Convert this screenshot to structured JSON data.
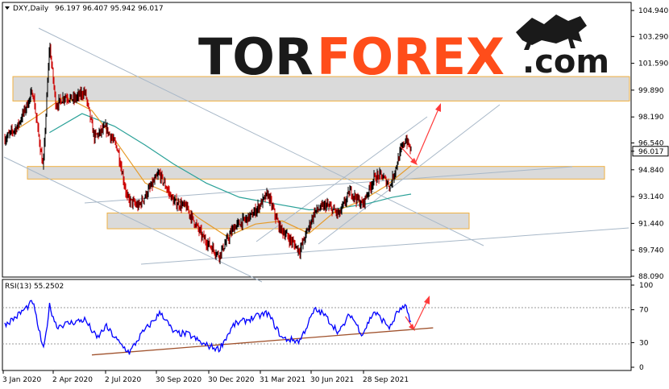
{
  "header": {
    "symbol": "DXY,Daily",
    "ohlc": "96.197 96.407 95.942 96.017",
    "rsi_label": "RSI(13) 55.2502"
  },
  "logo": {
    "part1": "TOR",
    "part2": "FOREX",
    "part3": ".com"
  },
  "colors": {
    "bull": "#000000",
    "bear": "#cc0000",
    "ma_fast": "#e69a28",
    "ma_slow": "#2aa198",
    "rsi_line": "#0000ff",
    "zone_fill": "#d3d3d3",
    "zone_border": "#f0b040",
    "channel": "#a8b8c8",
    "rsi_trend": "#a0522d",
    "arrow": "#ff3b3b",
    "logo_accent": "#ff4d1a"
  },
  "chart_data": [
    {
      "type": "candlestick",
      "title": "DXY,Daily",
      "y_ticks": [
        "104.940",
        "103.290",
        "101.590",
        "99.890",
        "98.190",
        "96.540",
        "96.017",
        "94.840",
        "93.140",
        "91.440",
        "89.740",
        "88.090"
      ],
      "x_ticks": [
        "3 Jan 2020",
        "2 Apr 2020",
        "2 Jul 2020",
        "30 Sep 2020",
        "30 Dec 2020",
        "31 Mar 2021",
        "30 Jun 2021",
        "28 Sep 2021"
      ],
      "ylim": [
        88.09,
        104.94
      ],
      "last_price": 96.017,
      "price_path": [
        {
          "date": "2020-01-03",
          "value": 96.8
        },
        {
          "date": "2020-01-25",
          "value": 97.6
        },
        {
          "date": "2020-02-20",
          "value": 99.8
        },
        {
          "date": "2020-03-05",
          "value": 96.0
        },
        {
          "date": "2020-03-09",
          "value": 94.9
        },
        {
          "date": "2020-03-20",
          "value": 102.8
        },
        {
          "date": "2020-03-31",
          "value": 98.9
        },
        {
          "date": "2020-04-15",
          "value": 99.5
        },
        {
          "date": "2020-05-01",
          "value": 99.3
        },
        {
          "date": "2020-05-20",
          "value": 99.8
        },
        {
          "date": "2020-06-05",
          "value": 96.9
        },
        {
          "date": "2020-06-25",
          "value": 97.5
        },
        {
          "date": "2020-07-15",
          "value": 96.2
        },
        {
          "date": "2020-08-01",
          "value": 93.0
        },
        {
          "date": "2020-08-20",
          "value": 92.5
        },
        {
          "date": "2020-09-25",
          "value": 94.6
        },
        {
          "date": "2020-10-20",
          "value": 92.8
        },
        {
          "date": "2020-11-10",
          "value": 92.5
        },
        {
          "date": "2020-12-10",
          "value": 90.5
        },
        {
          "date": "2021-01-06",
          "value": 89.4
        },
        {
          "date": "2021-02-01",
          "value": 91.2
        },
        {
          "date": "2021-03-05",
          "value": 92.0
        },
        {
          "date": "2021-03-31",
          "value": 93.3
        },
        {
          "date": "2021-04-20",
          "value": 91.2
        },
        {
          "date": "2021-05-25",
          "value": 89.7
        },
        {
          "date": "2021-06-20",
          "value": 92.2
        },
        {
          "date": "2021-07-10",
          "value": 92.6
        },
        {
          "date": "2021-08-01",
          "value": 92.0
        },
        {
          "date": "2021-08-20",
          "value": 93.5
        },
        {
          "date": "2021-09-10",
          "value": 92.6
        },
        {
          "date": "2021-09-30",
          "value": 94.3
        },
        {
          "date": "2021-10-12",
          "value": 94.5
        },
        {
          "date": "2021-10-28",
          "value": 93.8
        },
        {
          "date": "2021-11-15",
          "value": 96.0
        },
        {
          "date": "2021-11-24",
          "value": 96.8
        },
        {
          "date": "2021-12-03",
          "value": 96.017
        }
      ],
      "ma_fast": [
        {
          "date": "2020-01-15",
          "value": 97.2
        },
        {
          "date": "2020-03-01",
          "value": 98.3
        },
        {
          "date": "2020-04-15",
          "value": 99.5
        },
        {
          "date": "2020-06-01",
          "value": 98.6
        },
        {
          "date": "2020-07-15",
          "value": 96.5
        },
        {
          "date": "2020-09-01",
          "value": 94.0
        },
        {
          "date": "2020-10-15",
          "value": 93.3
        },
        {
          "date": "2020-12-01",
          "value": 91.8
        },
        {
          "date": "2021-01-20",
          "value": 90.6
        },
        {
          "date": "2021-03-10",
          "value": 91.4
        },
        {
          "date": "2021-04-25",
          "value": 91.6
        },
        {
          "date": "2021-06-10",
          "value": 90.8
        },
        {
          "date": "2021-07-25",
          "value": 92.2
        },
        {
          "date": "2021-09-10",
          "value": 92.9
        },
        {
          "date": "2021-10-20",
          "value": 93.8
        },
        {
          "date": "2021-12-03",
          "value": 95.1
        }
      ],
      "ma_slow": [
        {
          "date": "2020-03-20",
          "value": 97.2
        },
        {
          "date": "2020-05-15",
          "value": 98.4
        },
        {
          "date": "2020-07-10",
          "value": 97.6
        },
        {
          "date": "2020-09-01",
          "value": 96.4
        },
        {
          "date": "2020-10-20",
          "value": 95.2
        },
        {
          "date": "2020-12-15",
          "value": 94.0
        },
        {
          "date": "2021-02-10",
          "value": 93.1
        },
        {
          "date": "2021-04-10",
          "value": 92.7
        },
        {
          "date": "2021-06-10",
          "value": 92.3
        },
        {
          "date": "2021-08-01",
          "value": 92.4
        },
        {
          "date": "2021-09-20",
          "value": 92.7
        },
        {
          "date": "2021-11-01",
          "value": 93.1
        },
        {
          "date": "2021-12-03",
          "value": 93.3
        }
      ],
      "zones": [
        {
          "top": 100.75,
          "bottom": 99.2
        },
        {
          "top": 95.05,
          "bottom": 94.25
        },
        {
          "top": 92.1,
          "bottom": 91.1
        }
      ]
    },
    {
      "type": "line",
      "title": "RSI(13) 55.2502",
      "y_ticks": [
        "100",
        "70",
        "30",
        "0"
      ],
      "ylim": [
        0,
        100
      ],
      "levels": [
        70,
        30
      ],
      "value": 55.2502,
      "rsi_path": [
        {
          "date": "2020-01-03",
          "value": 52
        },
        {
          "date": "2020-01-20",
          "value": 60
        },
        {
          "date": "2020-02-10",
          "value": 73
        },
        {
          "date": "2020-02-20",
          "value": 80
        },
        {
          "date": "2020-03-05",
          "value": 35
        },
        {
          "date": "2020-03-10",
          "value": 20
        },
        {
          "date": "2020-03-20",
          "value": 75
        },
        {
          "date": "2020-04-01",
          "value": 50
        },
        {
          "date": "2020-05-01",
          "value": 55
        },
        {
          "date": "2020-05-20",
          "value": 58
        },
        {
          "date": "2020-06-10",
          "value": 35
        },
        {
          "date": "2020-06-25",
          "value": 50
        },
        {
          "date": "2020-07-20",
          "value": 28
        },
        {
          "date": "2020-08-05",
          "value": 18
        },
        {
          "date": "2020-08-25",
          "value": 40
        },
        {
          "date": "2020-09-28",
          "value": 67
        },
        {
          "date": "2020-10-20",
          "value": 42
        },
        {
          "date": "2020-11-15",
          "value": 40
        },
        {
          "date": "2020-12-10",
          "value": 28
        },
        {
          "date": "2021-01-06",
          "value": 22
        },
        {
          "date": "2021-02-01",
          "value": 52
        },
        {
          "date": "2021-03-05",
          "value": 60
        },
        {
          "date": "2021-03-31",
          "value": 66
        },
        {
          "date": "2021-04-25",
          "value": 35
        },
        {
          "date": "2021-05-25",
          "value": 32
        },
        {
          "date": "2021-06-20",
          "value": 70
        },
        {
          "date": "2021-07-05",
          "value": 65
        },
        {
          "date": "2021-08-01",
          "value": 42
        },
        {
          "date": "2021-08-20",
          "value": 65
        },
        {
          "date": "2021-09-10",
          "value": 40
        },
        {
          "date": "2021-09-30",
          "value": 68
        },
        {
          "date": "2021-10-28",
          "value": 48
        },
        {
          "date": "2021-11-10",
          "value": 68
        },
        {
          "date": "2021-11-24",
          "value": 73
        },
        {
          "date": "2021-12-03",
          "value": 55.25
        }
      ],
      "trendline": [
        {
          "date": "2020-06-01",
          "value": 15
        },
        {
          "date": "2022-01-10",
          "value": 48
        }
      ]
    }
  ]
}
